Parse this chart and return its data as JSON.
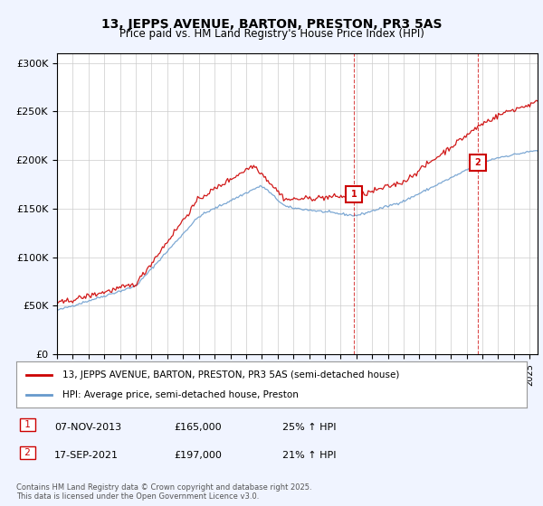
{
  "title": "13, JEPPS AVENUE, BARTON, PRESTON, PR3 5AS",
  "subtitle": "Price paid vs. HM Land Registry's House Price Index (HPI)",
  "ylabel_ticks": [
    "£0",
    "£50K",
    "£100K",
    "£150K",
    "£200K",
    "£250K",
    "£300K"
  ],
  "ytick_values": [
    0,
    50000,
    100000,
    150000,
    200000,
    250000,
    300000
  ],
  "ylim": [
    0,
    310000
  ],
  "xlim_start": 1995.0,
  "xlim_end": 2025.5,
  "marker1_x": 2013.85,
  "marker1_y": 165000,
  "marker2_x": 2021.71,
  "marker2_y": 197000,
  "marker1_label": "1",
  "marker2_label": "2",
  "red_line_color": "#cc0000",
  "blue_line_color": "#6699cc",
  "vline_color": "#cc0000",
  "legend_line1": "13, JEPPS AVENUE, BARTON, PRESTON, PR3 5AS (semi-detached house)",
  "legend_line2": "HPI: Average price, semi-detached house, Preston",
  "annotation1_date": "07-NOV-2013",
  "annotation1_price": "£165,000",
  "annotation1_hpi": "25% ↑ HPI",
  "annotation2_date": "17-SEP-2021",
  "annotation2_price": "£197,000",
  "annotation2_hpi": "21% ↑ HPI",
  "footer": "Contains HM Land Registry data © Crown copyright and database right 2025.\nThis data is licensed under the Open Government Licence v3.0.",
  "background_color": "#f0f4ff",
  "plot_bg_color": "#ffffff"
}
